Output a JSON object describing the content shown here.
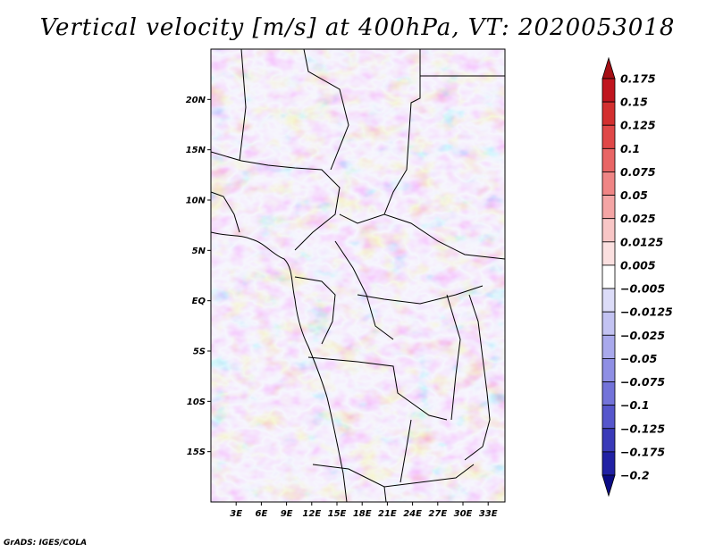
{
  "title": "Vertical velocity [m/s] at 400hPa, VT: 2020053018",
  "footer": "GrADS: IGES/COLA",
  "map": {
    "lon_range": [
      0,
      35
    ],
    "lat_range": [
      -20,
      25
    ],
    "lon_ticks": [
      "3E",
      "6E",
      "9E",
      "12E",
      "15E",
      "18E",
      "21E",
      "24E",
      "27E",
      "30E",
      "33E"
    ],
    "lat_ticks": [
      "20N",
      "15N",
      "10N",
      "5N",
      "EQ",
      "5S",
      "10S",
      "15S"
    ]
  },
  "colorbar": {
    "labels": [
      "0.175",
      "0.15",
      "0.125",
      "0.1",
      "0.075",
      "0.05",
      "0.025",
      "0.0125",
      "0.005",
      "−0.005",
      "−0.0125",
      "−0.025",
      "−0.05",
      "−0.075",
      "−0.1",
      "−0.125",
      "−0.175",
      "−0.2"
    ],
    "colors": [
      "#a50f15",
      "#c0151f",
      "#d32f2f",
      "#e04848",
      "#e86565",
      "#ef8585",
      "#f4a5a5",
      "#f8c6c6",
      "#fbe0e0",
      "#ffffff",
      "#dcdcf8",
      "#c3c3f2",
      "#a9a9ec",
      "#8f8fe4",
      "#7373d9",
      "#5656cc",
      "#3a3ab8",
      "#2121a4",
      "#0c0c85"
    ]
  }
}
